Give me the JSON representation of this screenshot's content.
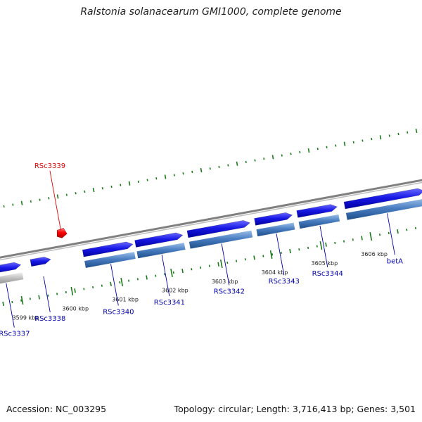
{
  "title": "Ralstonia solanacearum GMI1000, complete genome",
  "footer": {
    "accession": "Accession: NC_003295",
    "summary": "Topology: circular; Length: 3,716,413 bp; Genes: 3,501"
  },
  "colors": {
    "forward_gene": "#1818e6",
    "reverse_gene": "#4a7ec2",
    "rna_or_other": "#bdbdbd",
    "highlight": "#ff0000",
    "label": "#0000aa",
    "highlight_label": "#dd0000",
    "tick": "#1a7a1a",
    "backbone": "#808080"
  },
  "scale_ticks_kbp": [
    3599,
    3600,
    3601,
    3602,
    3603,
    3604,
    3605,
    3606
  ],
  "scale_unit": "kbp",
  "genes": [
    {
      "name": "RSc3337",
      "strand": "reverse-rna",
      "start_kbp": 3598.4,
      "end_kbp": 3599.1
    },
    {
      "name": "RSc3338",
      "strand": "forward",
      "start_kbp": 3599.3,
      "end_kbp": 3599.7
    },
    {
      "name": "RSc3339",
      "strand": "highlight",
      "start_kbp": 3599.95,
      "end_kbp": 3600.05
    },
    {
      "name": "RSc3340",
      "strand": "forward",
      "start_kbp": 3600.35,
      "end_kbp": 3601.35
    },
    {
      "name": "RSc3341",
      "strand": "forward",
      "start_kbp": 3601.4,
      "end_kbp": 3602.35
    },
    {
      "name": "RSc3342",
      "strand": "forward",
      "start_kbp": 3602.45,
      "end_kbp": 3603.7
    },
    {
      "name": "RSc3343",
      "strand": "forward",
      "start_kbp": 3603.8,
      "end_kbp": 3604.55
    },
    {
      "name": "RSc3344",
      "strand": "forward",
      "start_kbp": 3604.65,
      "end_kbp": 3605.45
    },
    {
      "name": "betA",
      "strand": "forward",
      "start_kbp": 3605.6,
      "end_kbp": 3607.2
    }
  ]
}
